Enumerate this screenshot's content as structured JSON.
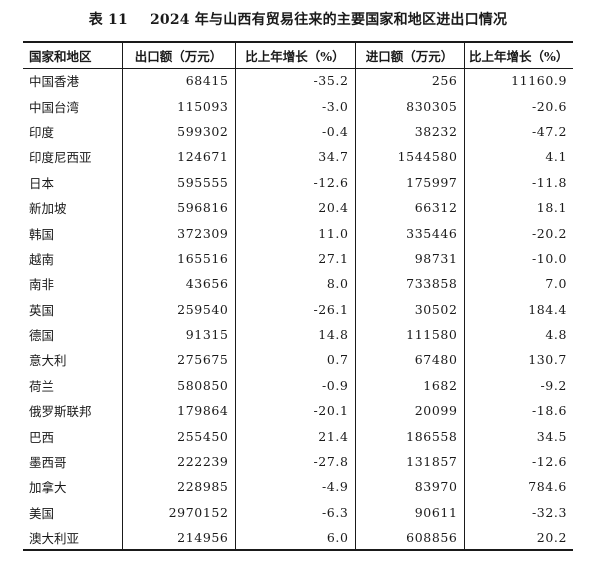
{
  "caption": {
    "number": "表 11",
    "title": "2024 年与山西有贸易往来的主要国家和地区进出口情况"
  },
  "headers": {
    "region": "国家和地区",
    "export": "出口额（万元）",
    "export_growth": "比上年增长（%）",
    "import": "进口额（万元）",
    "import_growth": "比上年增长（%）"
  },
  "rows": [
    {
      "region": "中国香港",
      "export": "68415",
      "export_growth": "-35.2",
      "import": "256",
      "import_growth": "11160.9"
    },
    {
      "region": "中国台湾",
      "export": "115093",
      "export_growth": "-3.0",
      "import": "830305",
      "import_growth": "-20.6"
    },
    {
      "region": "印度",
      "export": "599302",
      "export_growth": "-0.4",
      "import": "38232",
      "import_growth": "-47.2"
    },
    {
      "region": "印度尼西亚",
      "export": "124671",
      "export_growth": "34.7",
      "import": "1544580",
      "import_growth": "4.1"
    },
    {
      "region": "日本",
      "export": "595555",
      "export_growth": "-12.6",
      "import": "175997",
      "import_growth": "-11.8"
    },
    {
      "region": "新加坡",
      "export": "596816",
      "export_growth": "20.4",
      "import": "66312",
      "import_growth": "18.1"
    },
    {
      "region": "韩国",
      "export": "372309",
      "export_growth": "11.0",
      "import": "335446",
      "import_growth": "-20.2"
    },
    {
      "region": "越南",
      "export": "165516",
      "export_growth": "27.1",
      "import": "98731",
      "import_growth": "-10.0"
    },
    {
      "region": "南非",
      "export": "43656",
      "export_growth": "8.0",
      "import": "733858",
      "import_growth": "7.0"
    },
    {
      "region": "英国",
      "export": "259540",
      "export_growth": "-26.1",
      "import": "30502",
      "import_growth": "184.4"
    },
    {
      "region": "德国",
      "export": "91315",
      "export_growth": "14.8",
      "import": "111580",
      "import_growth": "4.8"
    },
    {
      "region": "意大利",
      "export": "275675",
      "export_growth": "0.7",
      "import": "67480",
      "import_growth": "130.7"
    },
    {
      "region": "荷兰",
      "export": "580850",
      "export_growth": "-0.9",
      "import": "1682",
      "import_growth": "-9.2"
    },
    {
      "region": "俄罗斯联邦",
      "export": "179864",
      "export_growth": "-20.1",
      "import": "20099",
      "import_growth": "-18.6"
    },
    {
      "region": "巴西",
      "export": "255450",
      "export_growth": "21.4",
      "import": "186558",
      "import_growth": "34.5"
    },
    {
      "region": "墨西哥",
      "export": "222239",
      "export_growth": "-27.8",
      "import": "131857",
      "import_growth": "-12.6"
    },
    {
      "region": "加拿大",
      "export": "228985",
      "export_growth": "-4.9",
      "import": "83970",
      "import_growth": "784.6"
    },
    {
      "region": "美国",
      "export": "2970152",
      "export_growth": "-6.3",
      "import": "90611",
      "import_growth": "-32.3"
    },
    {
      "region": "澳大利亚",
      "export": "214956",
      "export_growth": "6.0",
      "import": "608856",
      "import_growth": "20.2"
    }
  ]
}
